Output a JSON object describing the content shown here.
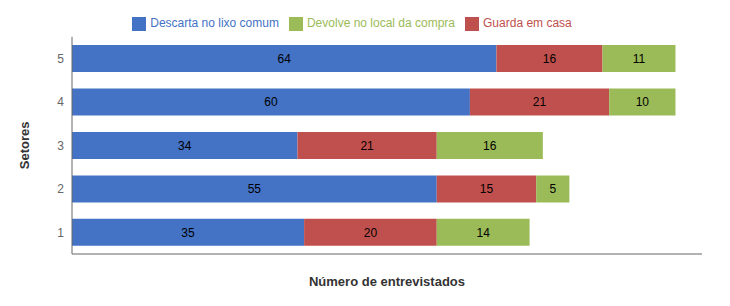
{
  "chart_data": {
    "type": "bar",
    "orientation": "horizontal",
    "stacked": true,
    "categories": [
      "1",
      "2",
      "3",
      "4",
      "5"
    ],
    "series": [
      {
        "name": "Descarta no lixo comum",
        "color": "#4472C4",
        "values": [
          35,
          55,
          34,
          60,
          64
        ]
      },
      {
        "name": "Guarda em casa",
        "color": "#C0504D",
        "values": [
          20,
          15,
          21,
          21,
          16
        ]
      },
      {
        "name": "Devolve no local da compra",
        "color": "#9BBB59",
        "values": [
          14,
          5,
          16,
          10,
          11
        ]
      }
    ],
    "xlabel": "Número de entrevistados",
    "ylabel": "Setores",
    "xlim": [
      0,
      95
    ],
    "legend": "top",
    "data_labels": true,
    "grid": false,
    "tick_labels": "y"
  }
}
